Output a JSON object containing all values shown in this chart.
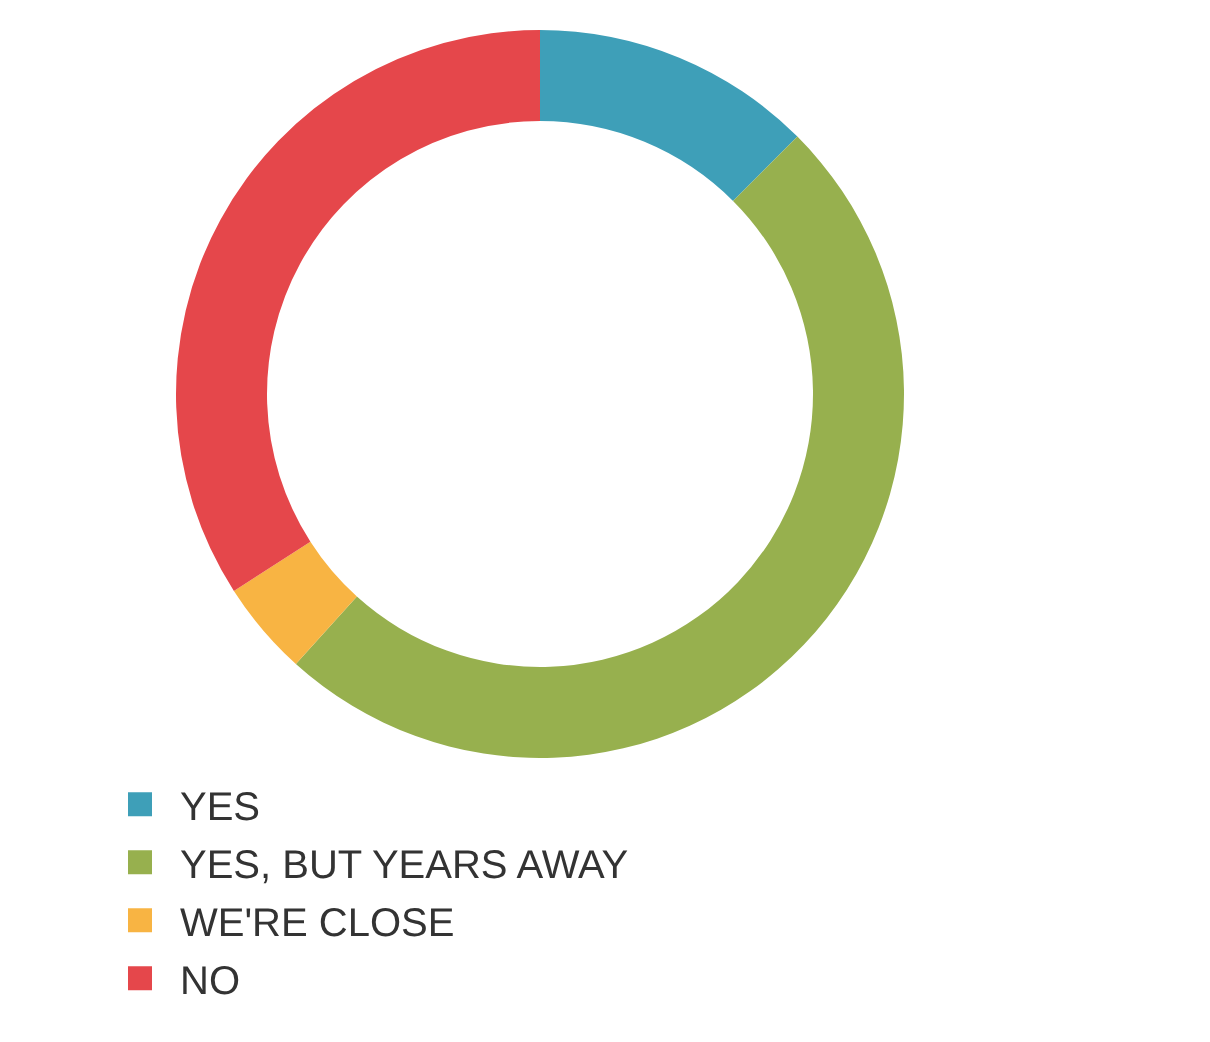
{
  "chart_data": {
    "type": "donut",
    "categories": [
      "YES",
      "YES, BUT YEARS AWAY",
      "WE'RE CLOSE",
      "NO"
    ],
    "values": [
      12.5,
      49.2,
      4.2,
      34.1
    ],
    "colors": [
      "#3e9fb8",
      "#97b04e",
      "#f8b443",
      "#e5474b"
    ],
    "legend": "bottom"
  }
}
